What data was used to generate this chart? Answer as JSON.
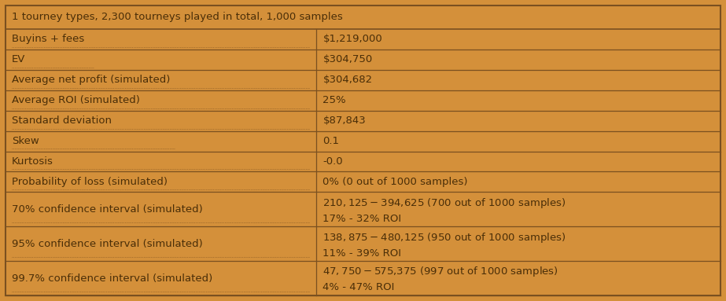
{
  "title": "1 tourney types, 2,300 tourneys played in total, 1,000 samples",
  "rows": [
    [
      "Buyins + fees",
      "$1,219,000"
    ],
    [
      "EV",
      "$304,750"
    ],
    [
      "Average net profit (simulated)",
      "$304,682"
    ],
    [
      "Average ROI (simulated)",
      "25%"
    ],
    [
      "Standard deviation",
      "$87,843"
    ],
    [
      "Skew",
      "0.1"
    ],
    [
      "Kurtosis",
      "-0.0"
    ],
    [
      "Probability of loss (simulated)",
      "0% (0 out of 1000 samples)"
    ],
    [
      "70% confidence interval (simulated)",
      "$210,125 - $394,625 (700 out of 1000 samples)\n17% - 32% ROI"
    ],
    [
      "95% confidence interval (simulated)",
      "$138,875 - $480,125 (950 out of 1000 samples)\n11% - 39% ROI"
    ],
    [
      "99.7% confidence interval (simulated)",
      "$47,750 - $575,375 (997 out of 1000 samples)\n4% - 47% ROI"
    ]
  ],
  "bg_color": "#D4903A",
  "border_color": "#7A5020",
  "text_color": "#4A2E08",
  "col_split": 0.435,
  "fig_width": 9.23,
  "fig_height": 3.83,
  "dpi": 100,
  "font_size": 9.5,
  "title_font_size": 9.5
}
